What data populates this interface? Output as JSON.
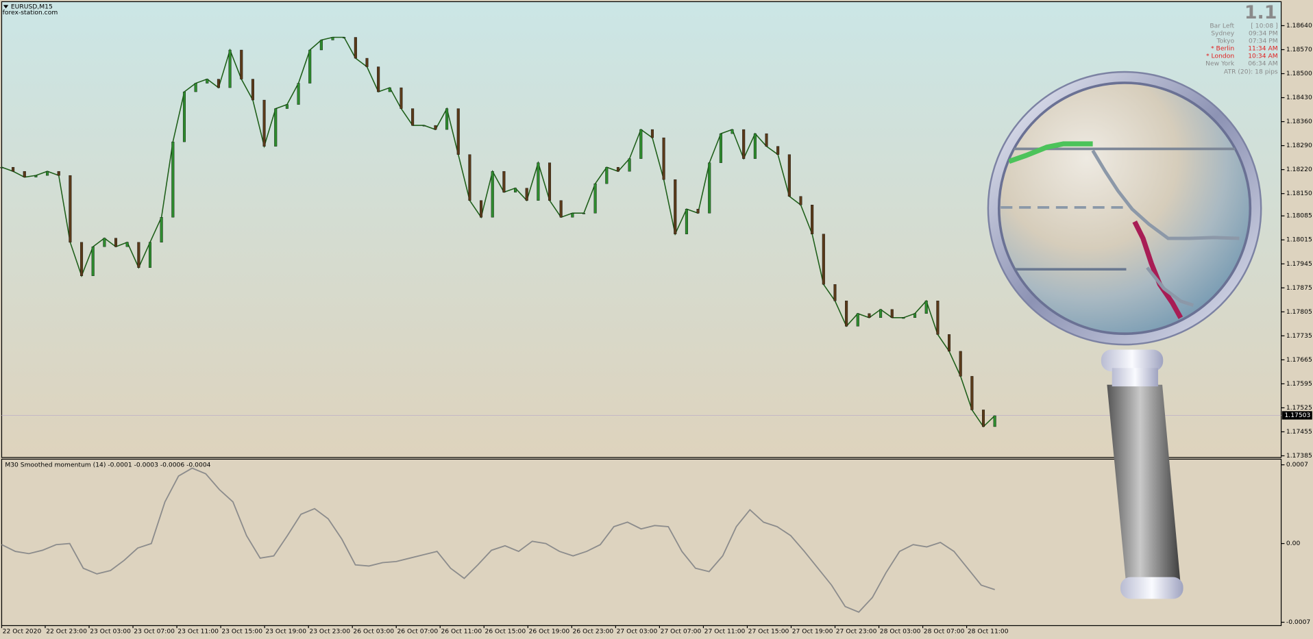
{
  "header": {
    "symbol": "EURUSD,M15",
    "watermark": "forex-station.com"
  },
  "price_chart": {
    "ylim": [
      1.1738,
      1.1871
    ],
    "yticks": [
      {
        "value": 1.1864,
        "label": "1.18640"
      },
      {
        "value": 1.1857,
        "label": "1.18570"
      },
      {
        "value": 1.185,
        "label": "1.18500"
      },
      {
        "value": 1.1843,
        "label": "1.18430"
      },
      {
        "value": 1.1836,
        "label": "1.18360"
      },
      {
        "value": 1.1829,
        "label": "1.18290"
      },
      {
        "value": 1.1822,
        "label": "1.18220"
      },
      {
        "value": 1.1815,
        "label": "1.18150"
      },
      1.18085,
      1.18015,
      1.17945,
      1.17875,
      1.17805,
      1.17735,
      1.17665,
      1.17595,
      1.17525,
      1.17455,
      1.17385
    ],
    "current_price": 1.17503,
    "closes": [
      1.18227,
      1.18215,
      1.18198,
      1.18203,
      1.18215,
      1.18203,
      1.18008,
      1.1791,
      1.17995,
      1.1802,
      1.17995,
      1.18008,
      1.17934,
      1.18008,
      1.18081,
      1.18301,
      1.18447,
      1.18472,
      1.18484,
      1.18459,
      1.18569,
      1.18484,
      1.18423,
      1.18288,
      1.18398,
      1.1841,
      1.18472,
      1.18569,
      1.18598,
      1.18606,
      1.18606,
      1.18545,
      1.1852,
      1.18447,
      1.18459,
      1.18398,
      1.18349,
      1.18349,
      1.18337,
      1.18398,
      1.18264,
      1.1813,
      1.18081,
      1.18215,
      1.18154,
      1.18166,
      1.1813,
      1.1824,
      1.1813,
      1.18081,
      1.18093,
      1.18093,
      1.18179,
      1.18227,
      1.18215,
      1.18252,
      1.18337,
      1.18313,
      1.18191,
      1.18032,
      1.18105,
      1.18093,
      1.1824,
      1.18325,
      1.18337,
      1.18252,
      1.18325,
      1.18288,
      1.18264,
      1.18142,
      1.18117,
      1.18032,
      1.17885,
      1.17837,
      1.17763,
      1.178,
      1.17788,
      1.17812,
      1.17788,
      1.17788,
      1.178,
      1.17837,
      1.17739,
      1.1769,
      1.17617,
      1.17519,
      1.1747,
      1.17502
    ]
  },
  "indicator": {
    "title": "M30 Smoothed momentum (14) -0.0001 -0.0003 -0.0006 -0.0004",
    "ylim": [
      -0.00073,
      0.00075
    ],
    "yticks": [
      0.0007,
      {
        "value": 0,
        "label": "0.00"
      },
      -0.0007
    ],
    "values": [
      -1e-05,
      -7e-05,
      -9e-05,
      -6e-05,
      -1e-05,
      0,
      -0.00022,
      -0.00027,
      -0.00024,
      -0.00015,
      -4e-05,
      0,
      0.00037,
      0.0006,
      0.00067,
      0.00062,
      0.00048,
      0.00037,
      7e-05,
      -0.00013,
      -0.00011,
      7e-05,
      0.00026,
      0.00031,
      0.00022,
      4e-05,
      -0.00019,
      -0.0002,
      -0.00017,
      -0.00016,
      -0.00013,
      -0.0001,
      -7e-05,
      -0.00022,
      -0.00031,
      -0.00019,
      -6e-05,
      -2e-05,
      -7e-05,
      2e-05,
      0,
      -7e-05,
      -0.00011,
      -7e-05,
      -1e-05,
      0.00015,
      0.00019,
      0.00013,
      0.00016,
      0.00015,
      -7e-05,
      -0.00022,
      -0.00025,
      -0.00011,
      0.00015,
      0.0003,
      0.00019,
      0.00015,
      7e-05,
      -7e-05,
      -0.00022,
      -0.00037,
      -0.00056,
      -0.00061,
      -0.00048,
      -0.00026,
      -7e-05,
      -1e-05,
      -3e-05,
      1e-05,
      -7e-05,
      -0.00022,
      -0.00037,
      -0.00041
    ]
  },
  "time_axis": {
    "labels": [
      "22 Oct 2020",
      "22 Oct 23:00",
      "23 Oct 03:00",
      "23 Oct 07:00",
      "23 Oct 11:00",
      "23 Oct 15:00",
      "23 Oct 19:00",
      "23 Oct 23:00",
      "26 Oct 03:00",
      "26 Oct 07:00",
      "26 Oct 11:00",
      "26 Oct 15:00",
      "26 Oct 19:00",
      "26 Oct 23:00",
      "27 Oct 03:00",
      "27 Oct 07:00",
      "27 Oct 11:00",
      "27 Oct 15:00",
      "27 Oct 19:00",
      "27 Oct 23:00",
      "28 Oct 03:00",
      "28 Oct 07:00",
      "28 Oct 11:00"
    ]
  },
  "info_panel": {
    "value": "1.1",
    "rows": [
      {
        "name": "Bar Left",
        "time": "[ 10:08 ]"
      },
      {
        "name": "Sydney",
        "time": "09:34 PM"
      },
      {
        "name": "Tokyo",
        "time": "07:34 PM"
      },
      {
        "name": "* Berlin",
        "time": "11:34 AM"
      },
      {
        "name": "* London",
        "time": "10:34 AM"
      },
      {
        "name": "New York",
        "time": "06:34 AM"
      }
    ],
    "atr": "ATR (20): 18 pips"
  }
}
